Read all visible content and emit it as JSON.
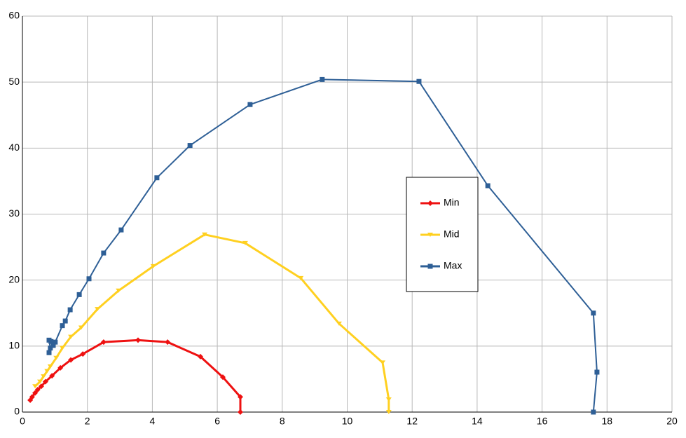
{
  "chart_data": {
    "type": "scatter-line",
    "xlim": [
      0,
      20
    ],
    "xticks": [
      0,
      2,
      4,
      6,
      8,
      10,
      12,
      14,
      16,
      18,
      20
    ],
    "ylim": [
      0,
      60
    ],
    "yticks": [
      0,
      10,
      20,
      30,
      40,
      50,
      60
    ],
    "grid": true,
    "legend": "right",
    "series": [
      {
        "name": "Min",
        "color": "#ee1111",
        "marker": "diamond",
        "x": [
          0.24,
          0.3,
          0.39,
          0.47,
          0.58,
          0.71,
          0.91,
          1.17,
          1.49,
          1.86,
          2.5,
          3.56,
          4.47,
          5.48,
          6.17,
          6.71,
          6.71
        ],
        "values": [
          1.8,
          2.3,
          2.9,
          3.4,
          3.9,
          4.6,
          5.5,
          6.7,
          7.9,
          8.8,
          10.6,
          10.9,
          10.6,
          8.4,
          5.3,
          2.3,
          0
        ]
      },
      {
        "name": "Mid",
        "color": "#ffd020",
        "marker": "triangle",
        "x": [
          0.39,
          0.54,
          0.65,
          0.76,
          0.86,
          1.04,
          1.23,
          1.49,
          1.81,
          2.31,
          2.96,
          4.03,
          5.61,
          6.86,
          8.57,
          9.75,
          11.09,
          11.28,
          11.28
        ],
        "values": [
          3.9,
          4.6,
          5.4,
          6.2,
          6.9,
          8.2,
          9.7,
          11.4,
          12.8,
          15.6,
          18.4,
          22.1,
          26.9,
          25.6,
          20.3,
          13.4,
          7.5,
          1.9,
          0
        ]
      },
      {
        "name": "Max",
        "color": "#2e5f96",
        "marker": "square",
        "x": [
          0.82,
          0.86,
          0.82,
          0.88,
          0.95,
          1.01,
          1.23,
          1.32,
          1.47,
          1.75,
          2.05,
          2.5,
          3.04,
          4.14,
          5.16,
          7.01,
          9.23,
          12.21,
          14.33,
          17.58,
          17.69,
          17.58
        ],
        "values": [
          9.0,
          9.7,
          10.9,
          10.7,
          10.1,
          10.6,
          13.1,
          13.8,
          15.5,
          17.8,
          20.2,
          24.1,
          27.6,
          35.5,
          40.4,
          46.6,
          50.4,
          50.1,
          34.3,
          15.0,
          6.05,
          0
        ]
      }
    ]
  }
}
